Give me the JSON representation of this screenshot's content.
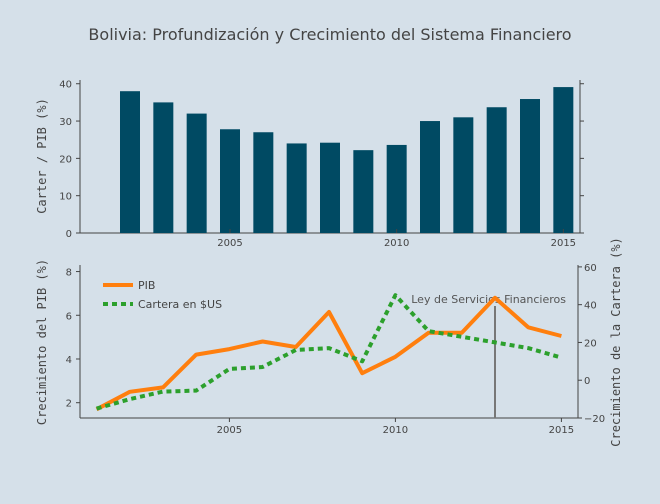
{
  "title": "Bolivia: Profundización y Crecimiento del Sistema Financiero",
  "colors": {
    "background": "#d5e0e9",
    "bars": "#004a63",
    "pib": "#ff7f0e",
    "cartera": "#2ca02c",
    "annotation_line": "#777777",
    "axis": "#444444"
  },
  "chart_data": [
    {
      "type": "bar",
      "x": [
        2002,
        2003,
        2004,
        2005,
        2006,
        2007,
        2008,
        2009,
        2010,
        2011,
        2012,
        2013,
        2014,
        2015
      ],
      "values": [
        38,
        35,
        32,
        27.8,
        27,
        24,
        24.2,
        22.2,
        23.6,
        30,
        31,
        33.7,
        35.9,
        39.1
      ],
      "ylabel": "Carter / PIB (%)",
      "ylim": [
        0,
        41
      ],
      "xlim": [
        2000.5,
        2015.5
      ],
      "x_ticks": [
        2005,
        2010,
        2015
      ],
      "y_ticks": [
        0,
        10,
        20,
        30,
        40
      ],
      "grid": false
    },
    {
      "type": "line",
      "x": [
        2001,
        2002,
        2003,
        2004,
        2005,
        2006,
        2007,
        2008,
        2009,
        2010,
        2011,
        2012,
        2013,
        2014,
        2015
      ],
      "series": [
        {
          "name": "PIB",
          "axis": "left",
          "style": "solid",
          "values": [
            1.7,
            2.5,
            2.7,
            4.2,
            4.45,
            4.8,
            4.55,
            6.15,
            3.35,
            4.1,
            5.2,
            5.2,
            6.8,
            5.45,
            5.05
          ]
        },
        {
          "name": "Cartera en $US",
          "axis": "right",
          "style": "dotted",
          "values": [
            -15,
            -10,
            -6,
            -5.5,
            6,
            7,
            16,
            17,
            10,
            45,
            26,
            23,
            20,
            17,
            12
          ]
        }
      ],
      "ylabel_left": "Crecimiento del PIB (%)",
      "ylabel_right": "Crecimiento de la Cartera (%)",
      "ylim_left": [
        1.3,
        8.3
      ],
      "ylim_right": [
        -20,
        61
      ],
      "y_ticks_left": [
        2,
        4,
        6,
        8
      ],
      "y_ticks_right": [
        -20,
        0,
        20,
        40,
        60
      ],
      "xlim": [
        2000.5,
        2015.5
      ],
      "x_ticks": [
        2005,
        2010,
        2015
      ],
      "legend_position": "top-left",
      "annotation": {
        "text": "Ley de Servicios Financieros",
        "x": 2013
      },
      "grid": false
    }
  ]
}
